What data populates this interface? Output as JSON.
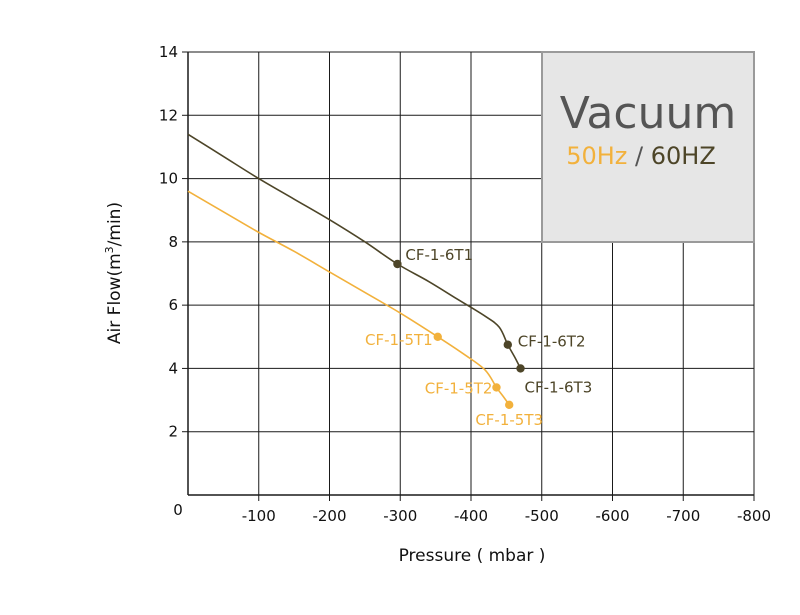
{
  "chart_data": {
    "type": "line",
    "xlabel": "Pressure ( mbar )",
    "ylabel_main": "Air Flow(m",
    "ylabel_sup": "3",
    "ylabel_tail": "/min)",
    "xlim": [
      0,
      -800
    ],
    "ylim": [
      0,
      14
    ],
    "x_ticks": [
      -100,
      -200,
      -300,
      -400,
      -500,
      -600,
      -700,
      -800
    ],
    "x_tick_labels": [
      "-100",
      "-200",
      "-300",
      "-400",
      "-500",
      "-600",
      "-700",
      "-800"
    ],
    "x_zero_label": "0",
    "y_ticks": [
      2,
      4,
      6,
      8,
      10,
      12,
      14
    ],
    "y_tick_labels": [
      "2",
      "4",
      "6",
      "8",
      "10",
      "12",
      "14"
    ],
    "grid": true,
    "legend": {
      "position": "top-right",
      "title": "Vacuum",
      "label_50": "50Hz",
      "separator": " / ",
      "label_60": "60HZ"
    },
    "colors": {
      "hz50": "#f2b13c",
      "hz60": "#4d4528",
      "legend_bg": "#e6e6e6",
      "legend_border": "#9a9a9a"
    },
    "series": [
      {
        "name": "60HZ",
        "color_key": "hz60",
        "curve": [
          [
            0,
            11.4
          ],
          [
            -50,
            10.7
          ],
          [
            -100,
            10.0
          ],
          [
            -150,
            9.35
          ],
          [
            -200,
            8.7
          ],
          [
            -250,
            8.0
          ],
          [
            -296,
            7.3
          ],
          [
            -340,
            6.75
          ],
          [
            -380,
            6.2
          ],
          [
            -420,
            5.65
          ],
          [
            -440,
            5.3
          ],
          [
            -452,
            4.75
          ],
          [
            -462,
            4.35
          ],
          [
            -470,
            4.0
          ]
        ],
        "points": [
          {
            "x": -296,
            "y": 7.3,
            "label": "CF-1-6T1"
          },
          {
            "x": -452,
            "y": 4.75,
            "label": "CF-1-6T2"
          },
          {
            "x": -470,
            "y": 4.0,
            "label": "CF-1-6T3"
          }
        ]
      },
      {
        "name": "50Hz",
        "color_key": "hz50",
        "curve": [
          [
            0,
            9.6
          ],
          [
            -50,
            8.95
          ],
          [
            -100,
            8.3
          ],
          [
            -150,
            7.7
          ],
          [
            -200,
            7.05
          ],
          [
            -250,
            6.4
          ],
          [
            -300,
            5.75
          ],
          [
            -353,
            5.0
          ],
          [
            -390,
            4.45
          ],
          [
            -420,
            3.95
          ],
          [
            -436,
            3.4
          ],
          [
            -446,
            3.1
          ],
          [
            -454,
            2.85
          ]
        ],
        "points": [
          {
            "x": -353,
            "y": 5.0,
            "label": "CF-1-5T1"
          },
          {
            "x": -436,
            "y": 3.4,
            "label": "CF-1-5T2"
          },
          {
            "x": -454,
            "y": 2.85,
            "label": "CF-1-5T3"
          }
        ]
      }
    ]
  }
}
